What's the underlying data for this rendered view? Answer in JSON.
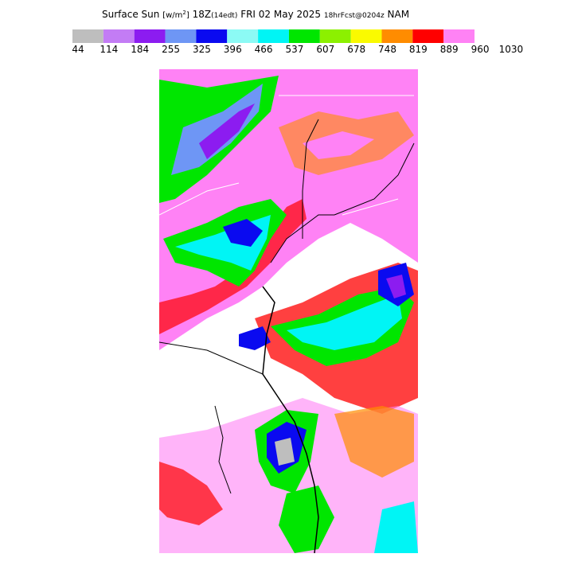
{
  "header": {
    "title": "Surface Sun",
    "units_open": "[w/m",
    "units_power": "2",
    "units_close": "]",
    "valid_time": "18Z",
    "local_time": "(14edt)",
    "date": "FRI 02 May 2025",
    "forecast": "18hrFcst@0204z",
    "model": "NAM"
  },
  "legend": {
    "levels": [
      "44",
      "114",
      "184",
      "255",
      "325",
      "396",
      "466",
      "537",
      "607",
      "678",
      "748",
      "819",
      "889",
      "960",
      "1030"
    ],
    "colors": [
      "#bebebe",
      "#c37cf5",
      "#8c1cf0",
      "#6e96f5",
      "#0a0af0",
      "#8cfaf5",
      "#00f5f5",
      "#00e600",
      "#8cf000",
      "#fafa00",
      "#ff8c00",
      "#ff0000",
      "#ff82f5",
      "#ffffff"
    ]
  }
}
